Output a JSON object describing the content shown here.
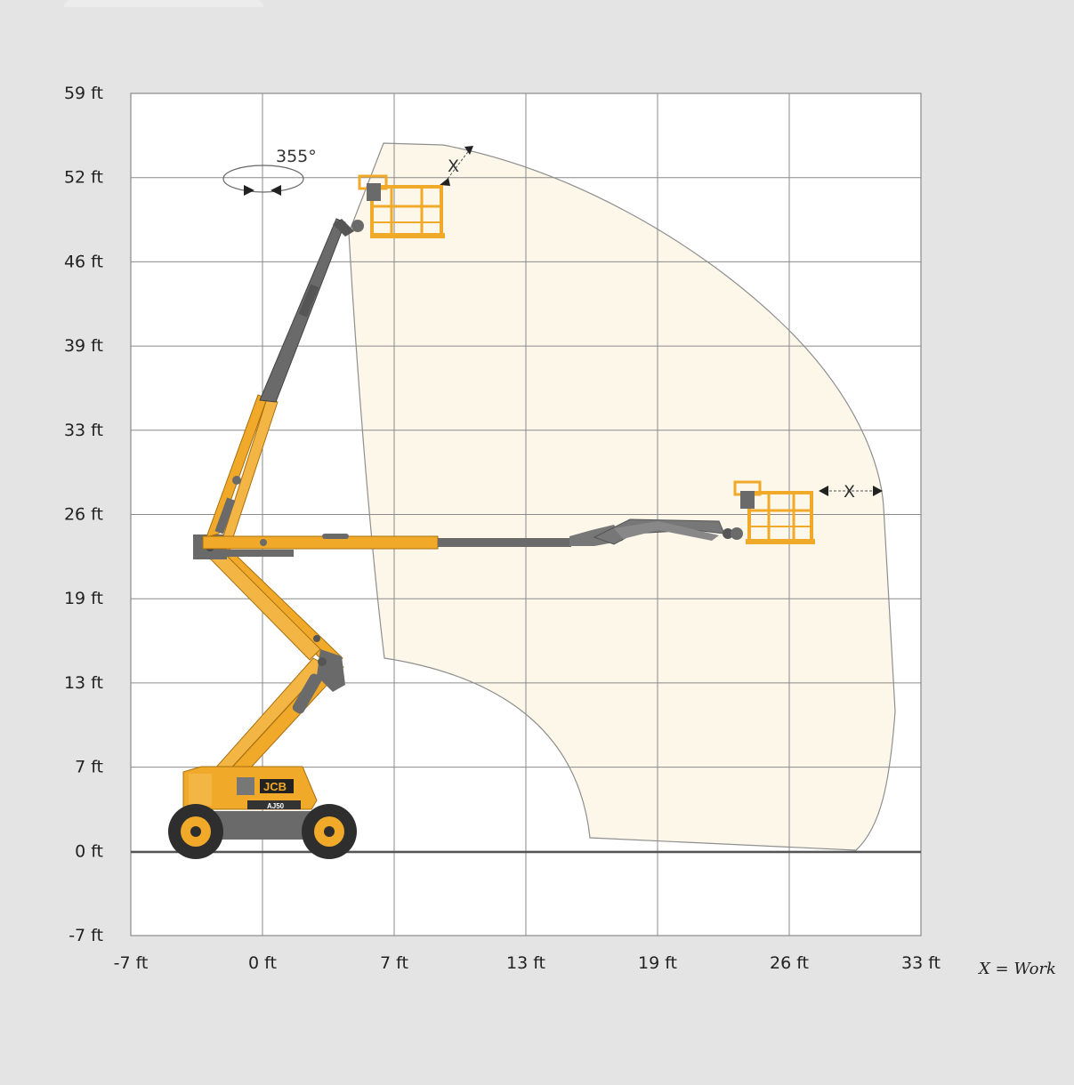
{
  "diagram": {
    "y_labels": [
      "59 ft",
      "52 ft",
      "46 ft",
      "39 ft",
      "33 ft",
      "26 ft",
      "19 ft",
      "13 ft",
      "7 ft",
      "0 ft",
      "-7 ft"
    ],
    "x_labels": [
      "-7 ft",
      "0 ft",
      "7 ft",
      "13 ft",
      "19 ft",
      "26 ft",
      "33 ft"
    ],
    "rotation_label": "355°",
    "outreach_marker": "X",
    "legend_text": "X = Work",
    "machine_badge": "JCB",
    "machine_model": "AJ50",
    "colors": {
      "background": "#e4e4e4",
      "plot": "#ffffff",
      "grid": "#8a8a8a",
      "envelope_fill": "#fcf7e9",
      "envelope_stroke": "#8f8f8f",
      "machine_yellow": "#f0a928",
      "machine_grey": "#6a6a6a",
      "tyre": "#2e2e2e"
    }
  }
}
